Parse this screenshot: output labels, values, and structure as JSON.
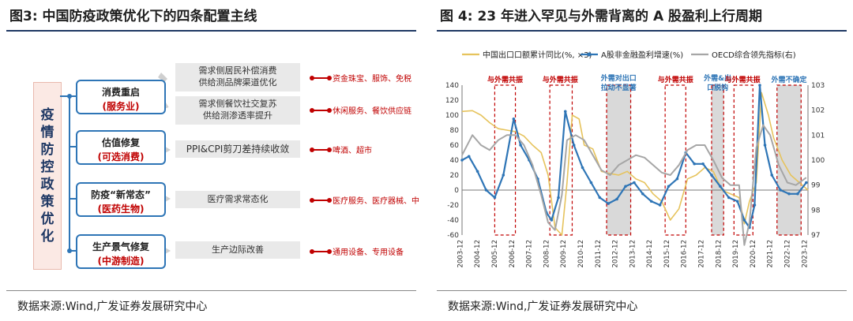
{
  "left_figure": {
    "title": "图3:  中国防疫政策优化下的四条配置主线",
    "side_label": [
      "疫",
      "情",
      "防",
      "控",
      "政",
      "策",
      "优",
      "化"
    ],
    "categories": [
      {
        "title": "消费重启",
        "sub": "(服务业)"
      },
      {
        "title": "估值修复",
        "sub": "(可选消费)"
      },
      {
        "title": "防疫“新常态”",
        "sub": "(医药生物)"
      },
      {
        "title": "生产景气修复",
        "sub": "(中游制造)"
      }
    ],
    "drivers": [
      [
        "需求侧居民补偿消费",
        "供给测品牌渠道优化"
      ],
      [
        "需求侧餐饮社交复苏",
        "供给测渗透率提升"
      ],
      [
        "PPI&CPI剪刀差持续收敛"
      ],
      [
        "医疗需求常态化"
      ],
      [
        "生产边际改善"
      ]
    ],
    "industries": [
      "资金珠宝、服饰、免税",
      "休闲服务、餐饮供应链",
      "啤酒、超市",
      "医疗服务、医疗器械、中",
      "通用设备、专用设备"
    ],
    "source": "数据来源:Wind,广发证券发展研究中心"
  },
  "right_figure": {
    "title": "图 4:  23 年进入罕见与外需背离的 A 股盈利上行周期",
    "source": "数据来源:Wind,广发证券发展研究中心",
    "annotations": [
      "与外需共振",
      "与外需共振",
      "外需对出口拉动不显著",
      "与外需共振",
      "外需&出口脱钩",
      "与外需共振",
      "外需不确定"
    ],
    "colors": {
      "export": "#e6c35c",
      "a_share": "#2e75b6",
      "oecd": "#a6a6a6",
      "annot_red": "#c00000",
      "annot_blue": "#2e75b6"
    }
  },
  "chart_data": {
    "type": "line",
    "title": "23 年进入罕见与外需背离的 A 股盈利上行周期",
    "x_ticks": [
      "2003-12",
      "2004-12",
      "2005-12",
      "2006-12",
      "2007-12",
      "2008-12",
      "2009-12",
      "2010-12",
      "2011-12",
      "2012-12",
      "2013-12",
      "2014-12",
      "2015-12",
      "2016-12",
      "2017-12",
      "2018-12",
      "2019-12",
      "2020-12",
      "2021-12",
      "2022-12",
      "2023-12"
    ],
    "x_range": [
      2003.9,
      2024.0
    ],
    "y_left": {
      "range": [
        -60,
        140
      ],
      "ticks": [
        -60,
        -40,
        -20,
        0,
        20,
        40,
        60,
        80,
        100,
        120,
        140
      ]
    },
    "y_right": {
      "range": [
        97,
        103
      ],
      "ticks": [
        97,
        98,
        99,
        100,
        101,
        102,
        103
      ]
    },
    "legend": "top",
    "series": [
      {
        "name": "中国出口口额累计同比(%, ×3)",
        "axis": "left",
        "x": [
          2003.9,
          2004.5,
          2005.0,
          2005.5,
          2006.0,
          2006.5,
          2007.0,
          2007.5,
          2008.0,
          2008.5,
          2008.9,
          2009.3,
          2009.7,
          2010.0,
          2010.3,
          2010.7,
          2011.0,
          2011.5,
          2012.0,
          2012.5,
          2013.0,
          2013.5,
          2014.0,
          2014.5,
          2015.0,
          2015.5,
          2016.0,
          2016.5,
          2017.0,
          2017.5,
          2018.0,
          2018.5,
          2019.0,
          2019.5,
          2020.0,
          2020.3,
          2020.6,
          2021.0,
          2021.3,
          2021.7,
          2022.0,
          2022.5,
          2023.0,
          2023.5,
          2024.0
        ],
        "y": [
          105,
          106,
          100,
          90,
          82,
          80,
          78,
          72,
          60,
          50,
          20,
          -50,
          -60,
          10,
          100,
          95,
          60,
          55,
          25,
          22,
          20,
          25,
          15,
          10,
          -5,
          -15,
          -40,
          -25,
          15,
          20,
          30,
          25,
          0,
          -5,
          -10,
          -45,
          -15,
          10,
          130,
          100,
          70,
          40,
          20,
          10,
          0
        ]
      },
      {
        "name": "A股非金融盈利增速(%)",
        "axis": "left",
        "x": [
          2003.9,
          2004.3,
          2004.8,
          2005.3,
          2005.8,
          2006.3,
          2006.9,
          2007.3,
          2007.8,
          2008.3,
          2008.8,
          2009.1,
          2009.5,
          2009.9,
          2010.4,
          2010.9,
          2011.4,
          2011.9,
          2012.4,
          2012.9,
          2013.4,
          2013.9,
          2014.4,
          2014.9,
          2015.4,
          2015.9,
          2016.4,
          2016.9,
          2017.4,
          2017.9,
          2018.4,
          2018.9,
          2019.4,
          2019.9,
          2020.3,
          2020.6,
          2020.9,
          2021.2,
          2021.5,
          2021.9,
          2022.4,
          2022.9,
          2023.4,
          2023.9
        ],
        "y": [
          40,
          45,
          25,
          0,
          -10,
          20,
          95,
          60,
          40,
          15,
          -30,
          -40,
          -10,
          105,
          60,
          30,
          10,
          -10,
          -18,
          -12,
          5,
          10,
          -5,
          -15,
          -20,
          5,
          15,
          50,
          35,
          35,
          20,
          5,
          -10,
          -15,
          -40,
          -50,
          -20,
          140,
          60,
          20,
          0,
          -5,
          -5,
          10
        ]
      },
      {
        "name": "OECD综合领先指标(右)",
        "axis": "right",
        "x": [
          2003.9,
          2004.5,
          2005.0,
          2005.5,
          2006.0,
          2006.5,
          2007.0,
          2007.5,
          2008.0,
          2008.5,
          2008.9,
          2009.3,
          2009.7,
          2010.0,
          2010.5,
          2011.0,
          2011.5,
          2012.0,
          2012.5,
          2013.0,
          2013.5,
          2014.0,
          2014.5,
          2015.0,
          2015.5,
          2016.0,
          2016.5,
          2017.0,
          2017.5,
          2018.0,
          2018.5,
          2019.0,
          2019.5,
          2020.0,
          2020.3,
          2020.6,
          2021.0,
          2021.4,
          2021.8,
          2022.3,
          2022.8,
          2023.3,
          2023.9
        ],
        "y": [
          100.2,
          101.0,
          100.6,
          100.4,
          100.8,
          101.0,
          101.0,
          100.6,
          99.8,
          98.6,
          97.5,
          97.2,
          98.6,
          100.8,
          101.0,
          100.8,
          100.2,
          99.6,
          99.4,
          99.8,
          100.0,
          100.2,
          100.1,
          99.8,
          99.5,
          99.4,
          99.8,
          100.4,
          100.6,
          100.6,
          100.0,
          99.3,
          99.0,
          99.0,
          96.6,
          97.5,
          100.5,
          101.4,
          101.0,
          99.8,
          99.1,
          99.0,
          99.3
        ]
      }
    ],
    "shaded_periods": [
      [
        2012.3,
        2013.7
      ],
      [
        2018.4,
        2019.1
      ],
      [
        2022.2,
        2023.6
      ]
    ],
    "highlight_periods": [
      [
        2005.8,
        2007.0
      ],
      [
        2009.0,
        2010.3
      ],
      [
        2015.7,
        2016.9
      ],
      [
        2019.7,
        2020.8
      ]
    ]
  }
}
